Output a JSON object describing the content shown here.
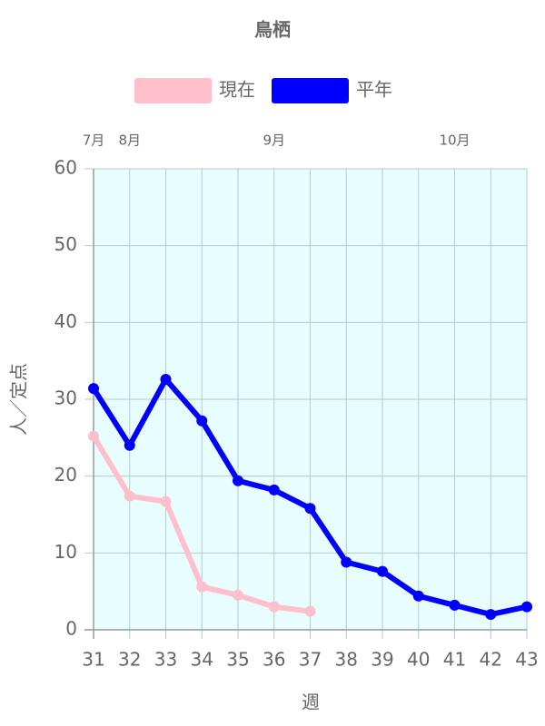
{
  "chart_data": {
    "type": "line",
    "title": "鳥栖",
    "x": [
      31,
      32,
      33,
      34,
      35,
      36,
      37,
      38,
      39,
      40,
      41,
      42,
      43
    ],
    "series": [
      {
        "name": "現在",
        "color": "#ffc0cb",
        "values": [
          25.2,
          17.4,
          16.7,
          5.6,
          4.5,
          3.0,
          2.4,
          null,
          null,
          null,
          null,
          null,
          null
        ]
      },
      {
        "name": "平年",
        "color": "#0000ff",
        "values": [
          31.4,
          24.0,
          32.6,
          27.2,
          19.4,
          18.2,
          15.8,
          8.8,
          7.6,
          4.4,
          3.2,
          2.0,
          3.0
        ]
      }
    ],
    "xlim": [
      31,
      43
    ],
    "xticks": [
      31,
      32,
      33,
      34,
      35,
      36,
      37,
      38,
      39,
      40,
      41,
      42,
      43
    ],
    "ylim": [
      0,
      60
    ],
    "yticks": [
      0,
      10,
      20,
      30,
      40,
      50,
      60
    ],
    "x_label": "週",
    "y_label": "人／定点",
    "month_labels": [
      {
        "label": "7月",
        "x": 31
      },
      {
        "label": "8月",
        "x": 32
      },
      {
        "label": "9月",
        "x": 36
      },
      {
        "label": "10月",
        "x": 41
      }
    ],
    "grid": true,
    "legend": "top",
    "plot_background": "#e8fdfd"
  }
}
